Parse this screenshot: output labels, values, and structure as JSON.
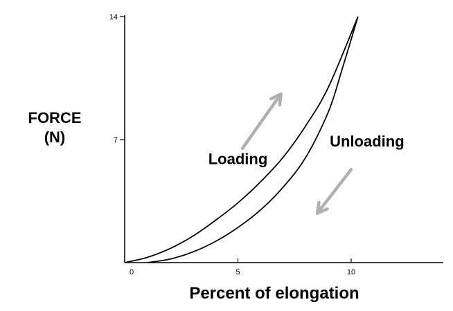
{
  "chart_data": {
    "type": "line",
    "title": "",
    "ylabel_lines": [
      "FORCE",
      "(N)"
    ],
    "xlabel": "Percent of elongation",
    "xlim": [
      0,
      14.5
    ],
    "ylim": [
      0,
      14
    ],
    "x_ticks": [
      {
        "value": 0,
        "label": "0"
      },
      {
        "value": 5,
        "label": "5"
      },
      {
        "value": 10,
        "label": "10"
      }
    ],
    "y_ticks": [
      {
        "value": 7,
        "label": "7"
      },
      {
        "value": 14,
        "label": "14"
      }
    ],
    "grid": false,
    "legend": "none",
    "series": [
      {
        "key": "loading",
        "color": "#000000",
        "x": [
          0,
          1,
          2,
          3,
          4,
          5,
          6,
          7,
          8,
          9,
          10.3
        ],
        "y": [
          0,
          0.3,
          0.8,
          1.5,
          2.4,
          3.4,
          4.6,
          6.0,
          7.8,
          10.0,
          14
        ]
      },
      {
        "key": "unloading",
        "color": "#000000",
        "x": [
          10.3,
          9.6,
          9,
          8,
          7,
          6,
          5,
          4,
          3,
          2,
          1
        ],
        "y": [
          14,
          11.0,
          8.6,
          6.0,
          4.3,
          3.0,
          2.0,
          1.2,
          0.6,
          0.2,
          0
        ]
      }
    ],
    "annotations": [
      {
        "key": "loading",
        "text": "Loading",
        "x": 5.0,
        "y": 5.6
      },
      {
        "key": "unloading",
        "text": "Unloading",
        "x": 10.7,
        "y": 6.6
      }
    ],
    "arrows": [
      {
        "key": "loading-arrow",
        "color": "#b0b0b0",
        "from": [
          5.2,
          6.5
        ],
        "to": [
          6.9,
          9.6
        ]
      },
      {
        "key": "unloading-arrow",
        "color": "#b0b0b0",
        "from": [
          10.0,
          5.3
        ],
        "to": [
          8.5,
          2.8
        ]
      }
    ]
  }
}
